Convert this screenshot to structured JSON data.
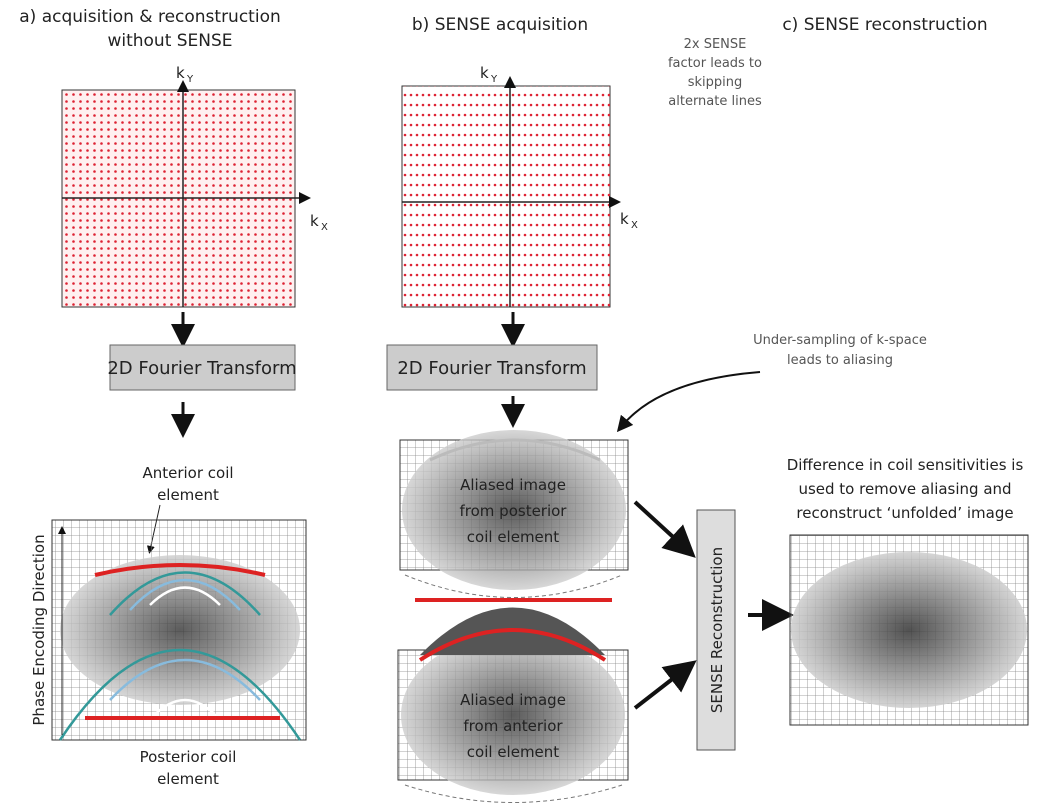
{
  "panel_a": {
    "title": [
      "a) acquisition & reconstruction",
      "without SENSE"
    ],
    "ky": {
      "base": "k",
      "sub": "Y"
    },
    "kx": {
      "base": "k",
      "sub": "X"
    },
    "transform": "2D Fourier Transform",
    "anterior": [
      "Anterior coil",
      "element"
    ],
    "posterior": [
      "Posterior coil",
      "element"
    ],
    "phase_axis": "Phase Encoding Direction"
  },
  "panel_b": {
    "title": "b) SENSE acquisition",
    "ky": {
      "base": "k",
      "sub": "Y"
    },
    "kx": {
      "base": "k",
      "sub": "X"
    },
    "note": [
      "2x SENSE",
      "factor leads to",
      "skipping",
      "alternate lines"
    ],
    "transform": "2D Fourier Transform",
    "undersampling": [
      "Under-sampling of k-space",
      "leads to aliasing"
    ],
    "image_posterior": [
      "Aliased image",
      "from posterior",
      "coil element"
    ],
    "image_anterior": [
      "Aliased image",
      "from anterior",
      "coil element"
    ],
    "reconstruction": "SENSE Reconstruction"
  },
  "panel_c": {
    "title": "c) SENSE reconstruction",
    "difference": [
      "Difference in coil sensitivities is",
      "used to remove aliasing and",
      "reconstruct ‘unfolded’ image"
    ]
  }
}
